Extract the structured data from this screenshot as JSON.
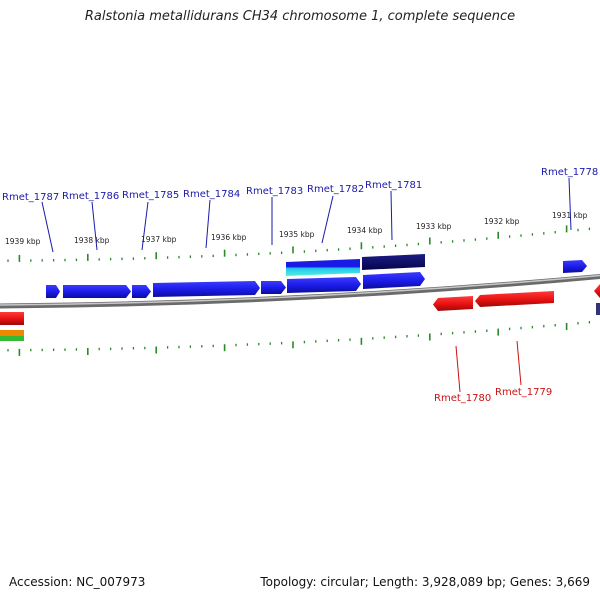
{
  "title": "Ralstonia metallidurans CH34 chromosome 1, complete sequence",
  "footer": {
    "accession": "Accession: NC_007973",
    "summary": "Topology: circular; Length: 3,928,089 bp; Genes: 3,669"
  },
  "colors": {
    "forward_gene": "#1a1aee",
    "reverse_gene": "#ee1111",
    "forward_label": "#1a1aaa",
    "reverse_label": "#cc1111",
    "backbone": "#8c8c8c",
    "tick": "#2a8a2a",
    "feature_dark": "#0a0a66",
    "feature_cyan": "#33dddd"
  },
  "tick_labels": [
    {
      "text": "1939 kbp",
      "kbp": 1939
    },
    {
      "text": "1938 kbp",
      "kbp": 1938
    },
    {
      "text": "1937 kbp",
      "kbp": 1937
    },
    {
      "text": "1936 kbp",
      "kbp": 1936
    },
    {
      "text": "1935 kbp",
      "kbp": 1935
    },
    {
      "text": "1934 kbp",
      "kbp": 1934
    },
    {
      "text": "1933 kbp",
      "kbp": 1933
    },
    {
      "text": "1932 kbp",
      "kbp": 1932
    },
    {
      "text": "1931 kbp",
      "kbp": 1931
    }
  ],
  "forward_gene_labels": [
    {
      "text": "Rmet_1787"
    },
    {
      "text": "Rmet_1786"
    },
    {
      "text": "Rmet_1785"
    },
    {
      "text": "Rmet_1784"
    },
    {
      "text": "Rmet_1783"
    },
    {
      "text": "Rmet_1782"
    },
    {
      "text": "Rmet_1781"
    },
    {
      "text": "Rmet_1778"
    }
  ],
  "reverse_gene_labels": [
    {
      "text": "Rmet_1780"
    },
    {
      "text": "Rmet_1779"
    }
  ]
}
